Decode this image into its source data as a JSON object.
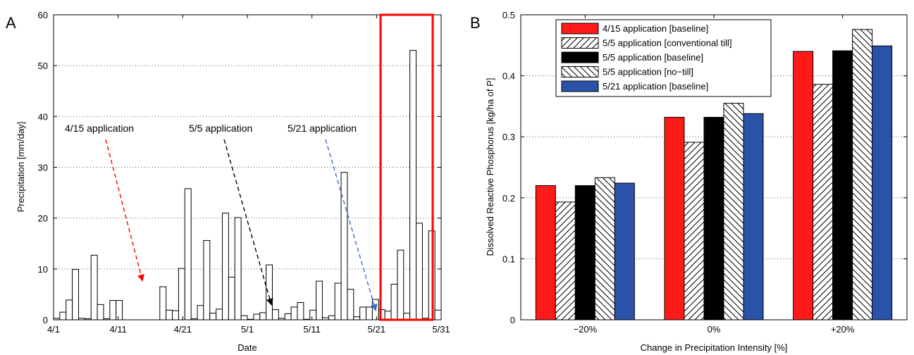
{
  "panel_labels": [
    "A",
    "B"
  ],
  "chart_data": [
    {
      "type": "bar",
      "panel": "A",
      "xlabel": "Date",
      "ylabel": "Precipitation [mm/day]",
      "ylim": [
        0,
        60
      ],
      "yticks": [
        0,
        10,
        20,
        30,
        40,
        50,
        60
      ],
      "x_range_days": [
        0,
        60
      ],
      "x_tick_days": [
        0,
        10,
        20,
        30,
        40,
        50,
        60
      ],
      "xtick_labels": [
        "4/1",
        "4/11",
        "4/21",
        "5/1",
        "5/11",
        "5/21",
        "5/31"
      ],
      "grid": "horizontal dotted",
      "bar_color": "#ffffff",
      "bar_edge": "#000000",
      "values": [
        0.3,
        1.5,
        3.9,
        9.9,
        0.3,
        0.2,
        12.7,
        3.0,
        0.2,
        3.8,
        3.8,
        0,
        0,
        0,
        0,
        0,
        0,
        6.5,
        1.9,
        1.8,
        10.1,
        25.8,
        0.2,
        2.8,
        15.6,
        1.3,
        2.1,
        21.0,
        8.4,
        20.1,
        0.8,
        0.1,
        1.1,
        1.4,
        10.8,
        2.0,
        0.3,
        1.2,
        2.5,
        3.4,
        0.1,
        1.9,
        7.6,
        0.4,
        0.8,
        7.2,
        29.0,
        6.0,
        0.6,
        2.5,
        2.5,
        4.0,
        2.0,
        1.7,
        7.0,
        13.7,
        1.3,
        53.0,
        19.0,
        0.3,
        17.5,
        1.9
      ],
      "annotations": [
        {
          "text": "4/15 application",
          "color": "#ff0000"
        },
        {
          "text": "5/5 application",
          "color": "#000000"
        },
        {
          "text": "5/21 application",
          "color": "#3a6bc6"
        }
      ],
      "highlight_box_color": "#ff0000"
    },
    {
      "type": "bar",
      "panel": "B",
      "xlabel": "Change in Precipitation Intensity [%]",
      "ylabel": "Dissolved Reactive Phosphorus [kg/ha of P]",
      "ylim": [
        0,
        0.5
      ],
      "yticks": [
        0,
        0.1,
        0.2,
        0.3,
        0.4,
        0.5
      ],
      "ytick_labels": [
        "0",
        "0.1",
        "0.2",
        "0.3",
        "0.4",
        "0.5"
      ],
      "categories": [
        "−20%",
        "0%",
        "+20%"
      ],
      "grid": "horizontal dotted",
      "legend_position": "top",
      "series": [
        {
          "name": "4/15 application [baseline]",
          "color": "#ff1a1a",
          "pattern": "solid",
          "values": [
            0.22,
            0.332,
            0.44
          ]
        },
        {
          "name": "5/5 application [conventional till]",
          "color": "#ffffff",
          "pattern": "forward-hatch",
          "values": [
            0.193,
            0.291,
            0.386
          ]
        },
        {
          "name": "5/5 application [baseline]",
          "color": "#000000",
          "pattern": "solid",
          "values": [
            0.22,
            0.332,
            0.441
          ]
        },
        {
          "name": "5/5 application [no−till]",
          "color": "#ffffff",
          "pattern": "back-hatch",
          "values": [
            0.233,
            0.355,
            0.476
          ]
        },
        {
          "name": "5/21 application [baseline]",
          "color": "#2a52a8",
          "pattern": "solid",
          "values": [
            0.224,
            0.338,
            0.449
          ]
        }
      ]
    }
  ]
}
